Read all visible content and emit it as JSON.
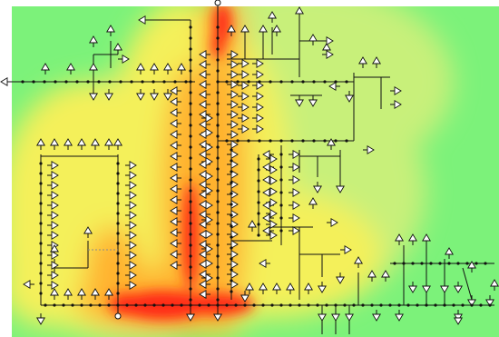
{
  "diagram": {
    "kind": "distribution-network-heatmap",
    "colors": {
      "background": "#ffffff",
      "low": "#7cf27a",
      "mid_low": "#c8f07a",
      "mid": "#f4f05a",
      "high": "#ffb22e",
      "very_high": "#ff2a18",
      "line": "#111111",
      "bus": "#111111",
      "marker_fill": "#ffffff",
      "tie_line": "#8a8a8a"
    },
    "icons": {
      "load": "triangle-load-icon",
      "bus": "bus-dot-icon",
      "source": "circle-source-icon"
    }
  }
}
